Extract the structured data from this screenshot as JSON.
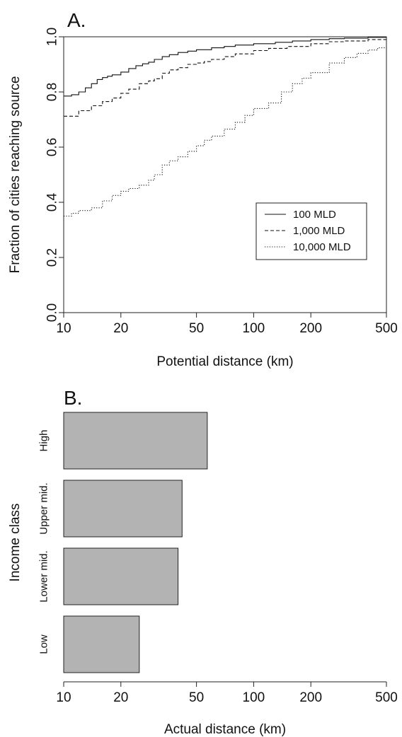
{
  "chart_data": [
    {
      "type": "line",
      "panel_label": "A.",
      "xlabel": "Potential distance (km)",
      "ylabel": "Fraction of cities reaching source",
      "x_scale": "log",
      "xlim": [
        10,
        500
      ],
      "ylim": [
        0,
        1
      ],
      "x_ticks": [
        10,
        20,
        50,
        100,
        200,
        500
      ],
      "x_tick_labels": [
        "10",
        "20",
        "50",
        "100",
        "200",
        "500"
      ],
      "y_ticks": [
        0,
        0.2,
        0.4,
        0.6,
        0.8,
        1
      ],
      "y_tick_labels": [
        "0.0",
        "0.2",
        "0.4",
        "0.6",
        "0.8",
        "1.0"
      ],
      "grid": false,
      "legend_position": "center-right",
      "series": [
        {
          "name": "100 MLD",
          "line_style": "solid",
          "x": [
            10,
            11,
            12,
            13,
            14,
            15,
            16,
            17,
            18,
            20,
            22,
            24,
            26,
            28,
            30,
            33,
            36,
            40,
            45,
            50,
            60,
            70,
            80,
            100,
            130,
            160,
            200,
            250,
            300,
            400,
            500
          ],
          "y": [
            0.785,
            0.79,
            0.8,
            0.815,
            0.83,
            0.845,
            0.852,
            0.857,
            0.862,
            0.872,
            0.885,
            0.895,
            0.902,
            0.908,
            0.918,
            0.928,
            0.935,
            0.943,
            0.948,
            0.953,
            0.96,
            0.965,
            0.97,
            0.975,
            0.98,
            0.985,
            0.99,
            0.993,
            0.995,
            0.998,
            1.0
          ]
        },
        {
          "name": "1,000 MLD",
          "line_style": "dashed",
          "x": [
            10,
            12,
            14,
            16,
            18,
            20,
            22,
            25,
            28,
            30,
            33,
            36,
            40,
            45,
            50,
            55,
            60,
            70,
            80,
            100,
            120,
            150,
            200,
            250,
            300,
            400,
            500
          ],
          "y": [
            0.712,
            0.732,
            0.75,
            0.765,
            0.778,
            0.795,
            0.81,
            0.83,
            0.84,
            0.848,
            0.868,
            0.88,
            0.888,
            0.9,
            0.905,
            0.91,
            0.918,
            0.928,
            0.938,
            0.95,
            0.958,
            0.965,
            0.975,
            0.982,
            0.985,
            0.99,
            0.995
          ]
        },
        {
          "name": "10,000 MLD",
          "line_style": "dotted",
          "x": [
            10,
            11,
            12,
            14,
            16,
            18,
            20,
            22,
            25,
            28,
            30,
            33,
            36,
            40,
            45,
            50,
            55,
            60,
            70,
            80,
            90,
            100,
            120,
            140,
            160,
            180,
            200,
            250,
            300,
            350,
            400,
            450,
            500
          ],
          "y": [
            0.35,
            0.36,
            0.37,
            0.38,
            0.405,
            0.425,
            0.44,
            0.45,
            0.462,
            0.48,
            0.5,
            0.535,
            0.55,
            0.565,
            0.585,
            0.605,
            0.625,
            0.64,
            0.665,
            0.69,
            0.715,
            0.74,
            0.76,
            0.8,
            0.83,
            0.85,
            0.87,
            0.905,
            0.925,
            0.94,
            0.952,
            0.96,
            0.965
          ]
        }
      ]
    },
    {
      "type": "bar",
      "orientation": "horizontal",
      "panel_label": "B.",
      "xlabel": "Actual distance (km)",
      "ylabel": "Income class",
      "x_scale": "log",
      "xlim": [
        10,
        500
      ],
      "x_ticks": [
        10,
        20,
        50,
        100,
        200,
        500
      ],
      "x_tick_labels": [
        "10",
        "20",
        "50",
        "100",
        "200",
        "500"
      ],
      "categories": [
        "High",
        "Upper mid.",
        "Lower mid.",
        "Low"
      ],
      "values": [
        57,
        42,
        40,
        25
      ],
      "bar_color": "#b3b3b3"
    }
  ]
}
